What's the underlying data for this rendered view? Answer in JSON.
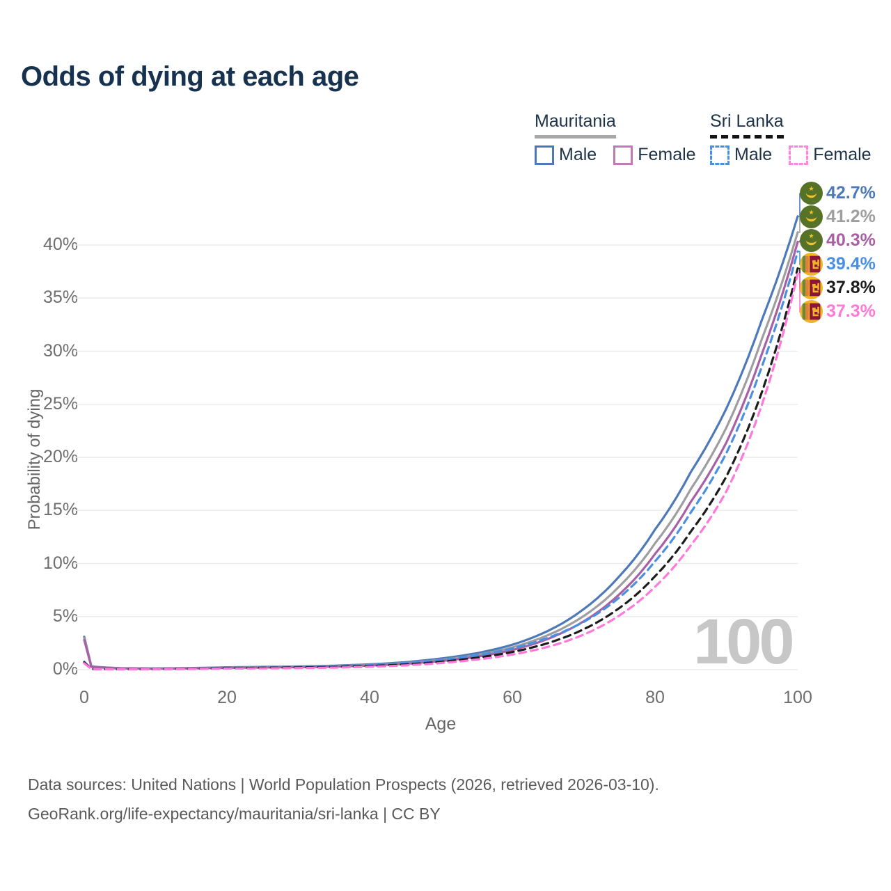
{
  "header": {
    "title": "Odds of dying at each age"
  },
  "legend": {
    "groups": [
      {
        "title": "Mauritania",
        "line_style": "solid",
        "underline_color": "#a8a8a8",
        "items": [
          {
            "label": "Male",
            "color": "#4d79b9"
          },
          {
            "label": "Female",
            "color": "#bd7cb8"
          }
        ]
      },
      {
        "title": "Sri Lanka",
        "line_style": "dashed",
        "underline_color": "#151515",
        "items": [
          {
            "label": "Male",
            "color": "#4a90e2"
          },
          {
            "label": "Female",
            "color": "#ff85dd"
          }
        ]
      }
    ]
  },
  "chart_data": {
    "type": "line",
    "title": "Odds of dying at each age",
    "xlabel": "Age",
    "ylabel": "Probability of dying",
    "xlim": [
      0,
      100
    ],
    "ylim": [
      0,
      44
    ],
    "grid": "horizontal",
    "x_ticks": [
      0,
      20,
      40,
      60,
      80,
      100
    ],
    "y_ticks": [
      {
        "label": "0%",
        "value": 0
      },
      {
        "label": "5%",
        "value": 5
      },
      {
        "label": "10%",
        "value": 10
      },
      {
        "label": "15%",
        "value": 15
      },
      {
        "label": "20%",
        "value": 20
      },
      {
        "label": "25%",
        "value": 25
      },
      {
        "label": "30%",
        "value": 30
      },
      {
        "label": "35%",
        "value": 35
      },
      {
        "label": "40%",
        "value": 40
      }
    ],
    "age_counter": "100",
    "x": [
      0,
      1,
      5,
      10,
      15,
      20,
      25,
      30,
      35,
      40,
      45,
      50,
      55,
      60,
      65,
      70,
      75,
      80,
      85,
      90,
      95,
      100
    ],
    "series": [
      {
        "name": "Mauritania Male",
        "country": "Mauritania",
        "sex": "Male",
        "color": "#4d79b9",
        "dash": false,
        "end_label": "42.7%",
        "end_value": 42.7,
        "values": [
          3.1,
          0.3,
          0.14,
          0.11,
          0.15,
          0.22,
          0.26,
          0.3,
          0.37,
          0.5,
          0.7,
          1.05,
          1.55,
          2.35,
          3.65,
          5.7,
          8.8,
          13.2,
          18.6,
          24.6,
          33.0,
          42.7
        ]
      },
      {
        "name": "Mauritania Both sexes",
        "country": "Mauritania",
        "sex": "Both",
        "color": "#9e9e9e",
        "dash": false,
        "end_label": "41.2%",
        "end_value": 41.2,
        "values": [
          2.95,
          0.28,
          0.13,
          0.1,
          0.14,
          0.2,
          0.23,
          0.27,
          0.33,
          0.44,
          0.62,
          0.92,
          1.38,
          2.1,
          3.25,
          5.05,
          7.85,
          11.9,
          17.0,
          22.8,
          31.2,
          41.2
        ]
      },
      {
        "name": "Mauritania Female",
        "country": "Mauritania",
        "sex": "Female",
        "color": "#a95fa4",
        "dash": false,
        "end_label": "40.3%",
        "end_value": 40.3,
        "values": [
          2.8,
          0.26,
          0.12,
          0.09,
          0.12,
          0.17,
          0.2,
          0.24,
          0.29,
          0.39,
          0.55,
          0.82,
          1.22,
          1.85,
          2.9,
          4.55,
          7.1,
          10.9,
          15.8,
          21.4,
          29.8,
          40.3
        ]
      },
      {
        "name": "Sri Lanka Male",
        "country": "Sri Lanka",
        "sex": "Male",
        "color": "#4a90e2",
        "dash": true,
        "end_label": "39.4%",
        "end_value": 39.4,
        "values": [
          0.75,
          0.06,
          0.04,
          0.05,
          0.1,
          0.18,
          0.21,
          0.25,
          0.31,
          0.42,
          0.6,
          0.9,
          1.35,
          2.0,
          3.0,
          4.5,
          6.8,
          10.2,
          14.8,
          20.4,
          28.6,
          39.4
        ]
      },
      {
        "name": "Sri Lanka Both sexes",
        "country": "Sri Lanka",
        "sex": "Both",
        "color": "#1c1c1c",
        "dash": true,
        "end_label": "37.8%",
        "end_value": 37.8,
        "values": [
          0.68,
          0.055,
          0.035,
          0.045,
          0.08,
          0.14,
          0.17,
          0.2,
          0.25,
          0.34,
          0.49,
          0.74,
          1.12,
          1.66,
          2.5,
          3.8,
          5.8,
          8.8,
          13.0,
          18.2,
          26.2,
          37.8
        ]
      },
      {
        "name": "Sri Lanka Female",
        "country": "Sri Lanka",
        "sex": "Female",
        "color": "#ff78da",
        "dash": true,
        "end_label": "37.3%",
        "end_value": 37.3,
        "values": [
          0.6,
          0.05,
          0.03,
          0.04,
          0.06,
          0.1,
          0.12,
          0.15,
          0.19,
          0.27,
          0.4,
          0.62,
          0.95,
          1.42,
          2.15,
          3.3,
          5.1,
          7.8,
          11.7,
          16.8,
          25.0,
          37.3
        ]
      }
    ]
  },
  "footer": {
    "line1": "Data sources: United Nations | World Population Prospects (2026, retrieved 2026-03-10).",
    "line2": "GeoRank.org/life-expectancy/mauritania/sri-lanka | CC BY"
  }
}
